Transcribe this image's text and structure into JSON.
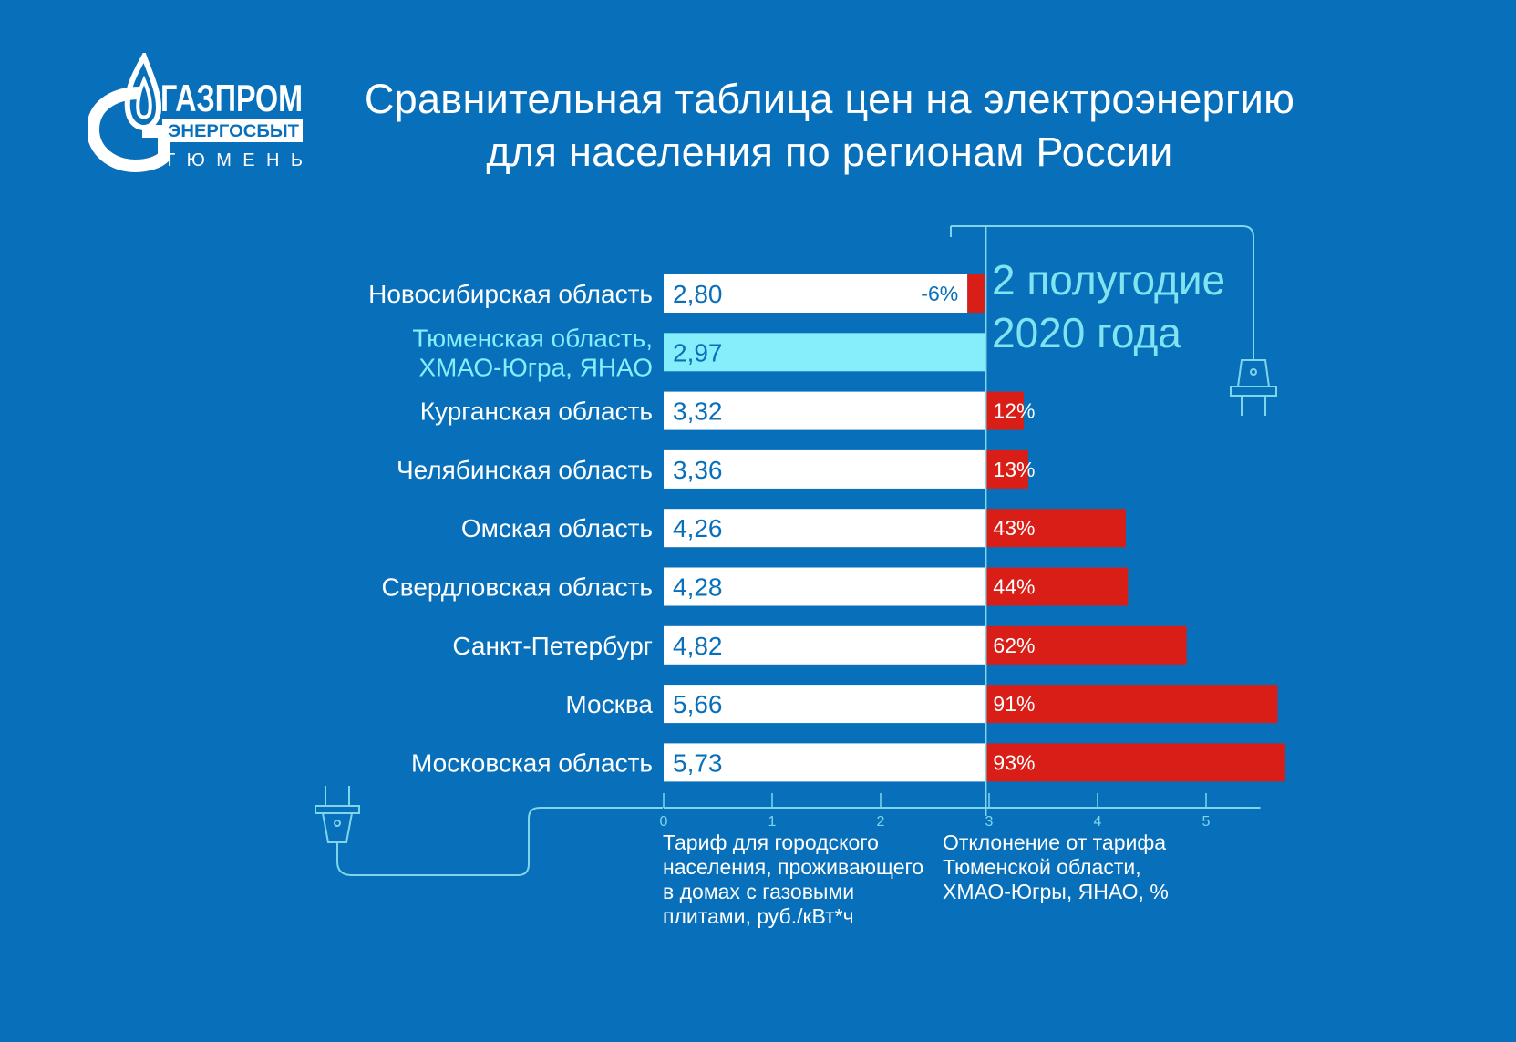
{
  "logo": {
    "word": "ГАЗПРОМ",
    "sub": "ЭНЕРГОСБЫТ",
    "city": "ТЮМЕНЬ"
  },
  "title": {
    "line1": "Сравнительная таблица цен на электроэнергию",
    "line2": "для населения по регионам России"
  },
  "period": {
    "line1": "2 полугодие",
    "line2": "2020 года"
  },
  "captions": {
    "left": [
      "Тариф для городского",
      "населения, проживающего",
      "в домах с газовыми",
      "плитами, руб./кВт*ч"
    ],
    "right": [
      "Отклонение от тарифа",
      "Тюменской области,",
      "ХМАО-Югры, ЯНАО, %"
    ]
  },
  "colors": {
    "background": "#0870bb",
    "bar": "#ffffff",
    "highlight_bar": "#86eefb",
    "deviation_bar": "#d81e17",
    "highlight_text": "#86eefb",
    "line": "#7fd6ea"
  },
  "chart_data": {
    "type": "bar",
    "orientation": "horizontal",
    "xlim": [
      0,
      5.5
    ],
    "xticks": [
      "0",
      "1",
      "2",
      "3",
      "4",
      "5"
    ],
    "reference": {
      "label": "Тюменская область, ХМАО-Югра, ЯНАО",
      "value": 2.97,
      "value_label": "2,97"
    },
    "categories": [
      [
        "Новосибирская область"
      ],
      [
        "Тюменская область,",
        "ХМАО-Югра, ЯНАО"
      ],
      [
        "Курганская область"
      ],
      [
        "Челябинская область"
      ],
      [
        "Омская область"
      ],
      [
        "Свердловская область"
      ],
      [
        "Санкт-Петербург"
      ],
      [
        "Москва"
      ],
      [
        "Московская область"
      ]
    ],
    "series": [
      {
        "values": [
          2.8,
          2.97,
          3.32,
          3.36,
          4.26,
          4.28,
          4.82,
          5.66,
          5.73
        ],
        "labels": [
          "2,80",
          "2,97",
          "3,32",
          "3,36",
          "4,26",
          "4,28",
          "4,82",
          "5,66",
          "5,73"
        ]
      },
      {
        "values": [
          -6,
          null,
          12,
          13,
          43,
          44,
          62,
          91,
          93
        ],
        "labels": [
          "-6%",
          "",
          "12%",
          "13%",
          "43%",
          "44%",
          "62%",
          "91%",
          "93%"
        ]
      }
    ],
    "highlight_index": 1
  }
}
